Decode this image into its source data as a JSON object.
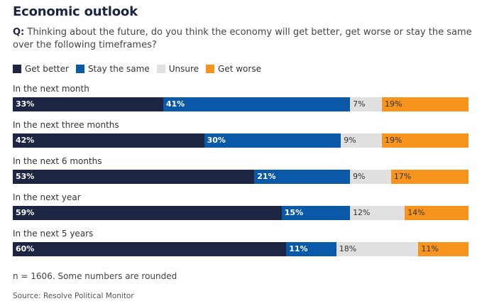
{
  "title": "Economic outlook",
  "question": {
    "prefix": "Q:",
    "text": "Thinking about the future, do you think the economy will get better, get worse or stay the same over the following timeframes?"
  },
  "colors": {
    "better": "#1c2541",
    "same": "#0a58a8",
    "unsure": "#e0e0e0",
    "worse": "#f7941d"
  },
  "chart_data": {
    "type": "bar",
    "orientation": "horizontal",
    "stacked": true,
    "legend_position": "top-left",
    "categories": [
      "In the next month",
      "In the next three months",
      "In the next 6 months",
      "In the next year",
      "In the next 5 years"
    ],
    "series": [
      {
        "name": "Get better",
        "key": "better",
        "values": [
          33,
          42,
          53,
          59,
          60
        ]
      },
      {
        "name": "Stay the same",
        "key": "same",
        "values": [
          41,
          30,
          21,
          15,
          11
        ]
      },
      {
        "name": "Unsure",
        "key": "unsure",
        "values": [
          7,
          9,
          9,
          12,
          18
        ]
      },
      {
        "name": "Get worse",
        "key": "worse",
        "values": [
          19,
          19,
          17,
          14,
          11
        ]
      }
    ]
  },
  "note": "n = 1606. Some numbers are rounded",
  "source": "Source: Resolve Political Monitor"
}
